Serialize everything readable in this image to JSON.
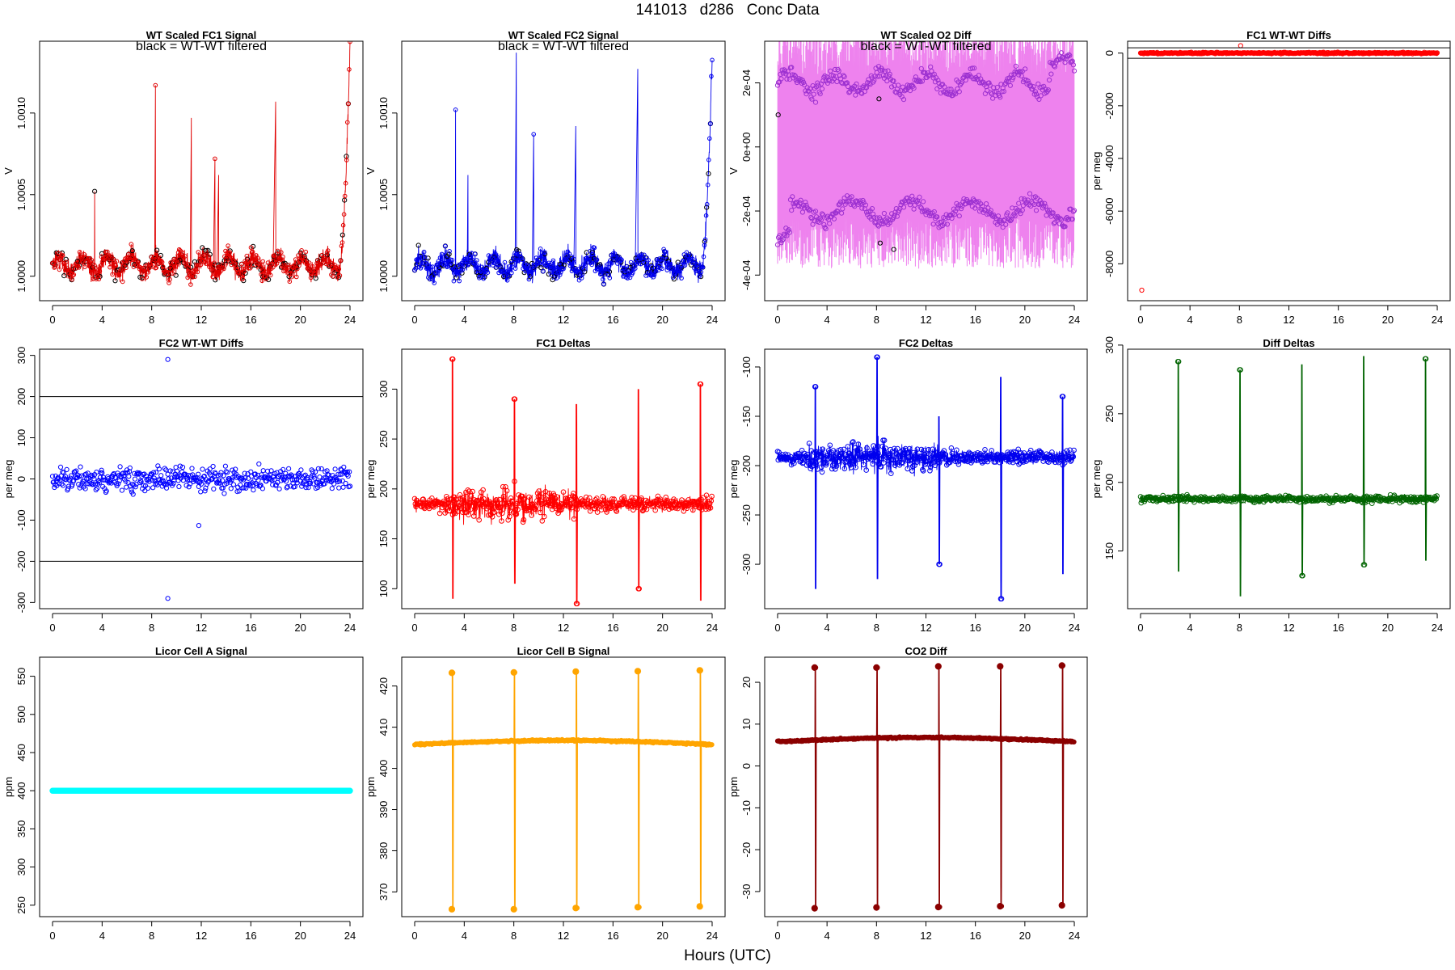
{
  "figure": {
    "title": "141013   d286   Conc Data",
    "x_caption": "Hours (UTC)"
  },
  "chart_data": [
    {
      "id": "fc1sig",
      "type": "line",
      "title": "WT Scaled FC1 Signal",
      "annotation": "black = WT-WT filtered",
      "ylabel": "V",
      "xlim": [
        0,
        24
      ],
      "ylim": [
        0.99985,
        1.00144
      ],
      "xticks": [
        0,
        4,
        8,
        12,
        16,
        20,
        24
      ],
      "yticks": [
        1.0,
        1.0005,
        1.001
      ],
      "ytick_labels": [
        "1.0000",
        "1.0005",
        "1.0010"
      ],
      "colors": {
        "series": "#e00000",
        "filtered": "#000000"
      },
      "baseline": 1.00007,
      "amplitude": 8e-05,
      "end_rise": 0.0013,
      "spikes": [
        [
          3.4,
          0.00045
        ],
        [
          8.3,
          0.0011
        ],
        [
          11.2,
          0.0009
        ],
        [
          13.1,
          0.00065
        ],
        [
          13.4,
          0.00055
        ],
        [
          18.0,
          0.001
        ]
      ],
      "seed": 3
    },
    {
      "id": "fc2sig",
      "type": "line",
      "title": "WT Scaled FC2 Signal",
      "annotation": "black = WT-WT filtered",
      "ylabel": "V",
      "xlim": [
        0,
        24
      ],
      "ylim": [
        0.99985,
        1.00144
      ],
      "xticks": [
        0,
        4,
        8,
        12,
        16,
        20,
        24
      ],
      "yticks": [
        1.0,
        1.0005,
        1.001
      ],
      "ytick_labels": [
        "1.0000",
        "1.0005",
        "1.0010"
      ],
      "colors": {
        "series": "#0000ee",
        "filtered": "#000000"
      },
      "baseline": 1.00007,
      "amplitude": 8e-05,
      "end_rise": 0.0012,
      "spikes": [
        [
          3.3,
          0.00095
        ],
        [
          4.3,
          0.00055
        ],
        [
          8.2,
          0.0013
        ],
        [
          9.6,
          0.0008
        ],
        [
          13.0,
          0.00085
        ],
        [
          18.0,
          0.0012
        ]
      ],
      "seed": 7
    },
    {
      "id": "o2diff",
      "type": "line",
      "title": "WT Scaled O2 Diff",
      "annotation": "black = WT-WT filtered",
      "ylabel": "V",
      "xlim": [
        0,
        24
      ],
      "ylim": [
        -0.00048,
        0.00033
      ],
      "xticks": [
        0,
        4,
        8,
        12,
        16,
        20,
        24
      ],
      "yticks": [
        -0.0004,
        -0.0002,
        0,
        0.0002
      ],
      "ytick_labels": [
        "-4e-04",
        "-2e-04",
        "0e+00",
        "2e-04"
      ],
      "colors": {
        "series": "#ee82ee",
        "points": "#9b30d0",
        "filtered": "#000000"
      },
      "upper_level": 0.0002,
      "lower_level": -0.0002,
      "seed": 11
    },
    {
      "id": "fc1wtwt",
      "type": "scatter",
      "title": "FC1 WT-WT Diffs",
      "ylabel": "per meg",
      "xlim": [
        0,
        24
      ],
      "ylim": [
        -9400,
        450
      ],
      "xticks": [
        0,
        4,
        8,
        12,
        16,
        20,
        24
      ],
      "yticks": [
        -8000,
        -6000,
        -4000,
        -2000,
        0
      ],
      "ytick_labels": [
        "-8000",
        "-6000",
        "-4000",
        "-2000",
        "0"
      ],
      "hlines": [
        200,
        -200
      ],
      "colors": {
        "series": "#ff0000"
      },
      "outliers": [
        [
          0.1,
          -9000
        ],
        [
          8.1,
          280
        ]
      ],
      "spread": 40,
      "seed": 13
    },
    {
      "id": "fc2wtwt",
      "type": "scatter",
      "title": "FC2 WT-WT Diffs",
      "ylabel": "per meg",
      "xlim": [
        0,
        24
      ],
      "ylim": [
        -315,
        315
      ],
      "xticks": [
        0,
        4,
        8,
        12,
        16,
        20,
        24
      ],
      "yticks": [
        -300,
        -200,
        -100,
        0,
        100,
        200,
        300
      ],
      "ytick_labels": [
        "-300",
        "-200",
        "-100",
        "0",
        "100",
        "200",
        "300"
      ],
      "hlines": [
        200,
        -200
      ],
      "colors": {
        "series": "#0000ff"
      },
      "outliers": [
        [
          9.3,
          290
        ],
        [
          9.3,
          -290
        ],
        [
          11.8,
          -113
        ]
      ],
      "spread": 40,
      "seed": 17
    },
    {
      "id": "fc1deltas",
      "type": "line",
      "title": "FC1 Deltas",
      "ylabel": "per meg",
      "xlim": [
        0,
        24
      ],
      "ylim": [
        80,
        340
      ],
      "xticks": [
        0,
        4,
        8,
        12,
        16,
        20,
        24
      ],
      "yticks": [
        100,
        150,
        200,
        250,
        300
      ],
      "ytick_labels": [
        "100",
        "150",
        "200",
        "250",
        "300"
      ],
      "colors": {
        "series": "#ff0000"
      },
      "baseline": 185,
      "noise": 12,
      "spike_times": [
        3.0,
        8.0,
        13.0,
        18.0,
        23.0
      ],
      "spike_up": [
        330,
        290,
        285,
        300,
        305
      ],
      "spike_down": [
        90,
        105,
        85,
        100,
        88
      ],
      "seed": 19
    },
    {
      "id": "fc2deltas",
      "type": "line",
      "title": "FC2 Deltas",
      "ylabel": "per meg",
      "xlim": [
        0,
        24
      ],
      "ylim": [
        -345,
        -82
      ],
      "xticks": [
        0,
        4,
        8,
        12,
        16,
        20,
        24
      ],
      "yticks": [
        -300,
        -250,
        -200,
        -150,
        -100
      ],
      "ytick_labels": [
        "-300",
        "-250",
        "-200",
        "-150",
        "-100"
      ],
      "colors": {
        "series": "#0000ee"
      },
      "baseline": -192,
      "noise": 12,
      "spike_times": [
        3.0,
        8.0,
        13.0,
        18.0,
        23.0
      ],
      "spike_up": [
        -120,
        -90,
        -150,
        -110,
        -130
      ],
      "spike_down": [
        -325,
        -315,
        -300,
        -335,
        -310
      ],
      "seed": 23
    },
    {
      "id": "diffdeltas",
      "type": "line",
      "title": "Diff Deltas",
      "ylabel": "per meg",
      "xlim": [
        0,
        24
      ],
      "ylim": [
        108,
        297
      ],
      "xticks": [
        0,
        4,
        8,
        12,
        16,
        20,
        24
      ],
      "yticks": [
        150,
        200,
        250,
        300
      ],
      "ytick_labels": [
        "150",
        "200",
        "250",
        "300"
      ],
      "colors": {
        "series": "#006400"
      },
      "baseline": 188,
      "noise": 4,
      "spike_times": [
        3.0,
        8.0,
        13.0,
        18.0,
        23.0
      ],
      "spike_up": [
        288,
        282,
        286,
        292,
        290
      ],
      "spike_down": [
        135,
        117,
        132,
        140,
        143
      ],
      "seed": 29
    },
    {
      "id": "licorA",
      "type": "scatter",
      "title": "Licor Cell A Signal",
      "ylabel": "ppm",
      "xlim": [
        0,
        24
      ],
      "ylim": [
        235,
        575
      ],
      "xticks": [
        0,
        4,
        8,
        12,
        16,
        20,
        24
      ],
      "yticks": [
        250,
        300,
        350,
        400,
        450,
        500,
        550
      ],
      "ytick_labels": [
        "250",
        "300",
        "350",
        "400",
        "450",
        "500",
        "550"
      ],
      "colors": {
        "series": "#00ffff"
      },
      "value": 400
    },
    {
      "id": "licorB",
      "type": "line",
      "title": "Licor Cell B Signal",
      "ylabel": "ppm",
      "xlim": [
        0,
        24
      ],
      "ylim": [
        364,
        427
      ],
      "xticks": [
        0,
        4,
        8,
        12,
        16,
        20,
        24
      ],
      "yticks": [
        370,
        380,
        390,
        400,
        410,
        420
      ],
      "ytick_labels": [
        "370",
        "380",
        "390",
        "400",
        "410",
        "420"
      ],
      "colors": {
        "series": "#ffa500"
      },
      "baseline": 405.8,
      "drift": 1.0,
      "spike_times": [
        3.0,
        8.0,
        13.0,
        18.0,
        23.0
      ],
      "spike_up": [
        423.2,
        423.3,
        423.5,
        423.6,
        423.8
      ],
      "spike_down": [
        365.8,
        365.8,
        366.1,
        366.3,
        366.5
      ],
      "seed": 31
    },
    {
      "id": "co2diff",
      "type": "line",
      "title": "CO2 Diff",
      "ylabel": "ppm",
      "xlim": [
        0,
        24
      ],
      "ylim": [
        -36,
        26
      ],
      "xticks": [
        0,
        4,
        8,
        12,
        16,
        20,
        24
      ],
      "yticks": [
        -30,
        -20,
        -10,
        0,
        10,
        20
      ],
      "ytick_labels": [
        "-30",
        "-20",
        "-10",
        "0",
        "10",
        "20"
      ],
      "colors": {
        "series": "#8b0000"
      },
      "baseline": 5.8,
      "drift": 1.0,
      "spike_times": [
        3.0,
        8.0,
        13.0,
        18.0,
        23.0
      ],
      "spike_up": [
        23.5,
        23.5,
        23.8,
        23.8,
        24.0
      ],
      "spike_down": [
        -34.0,
        -33.8,
        -33.7,
        -33.5,
        -33.3
      ],
      "seed": 37
    }
  ]
}
